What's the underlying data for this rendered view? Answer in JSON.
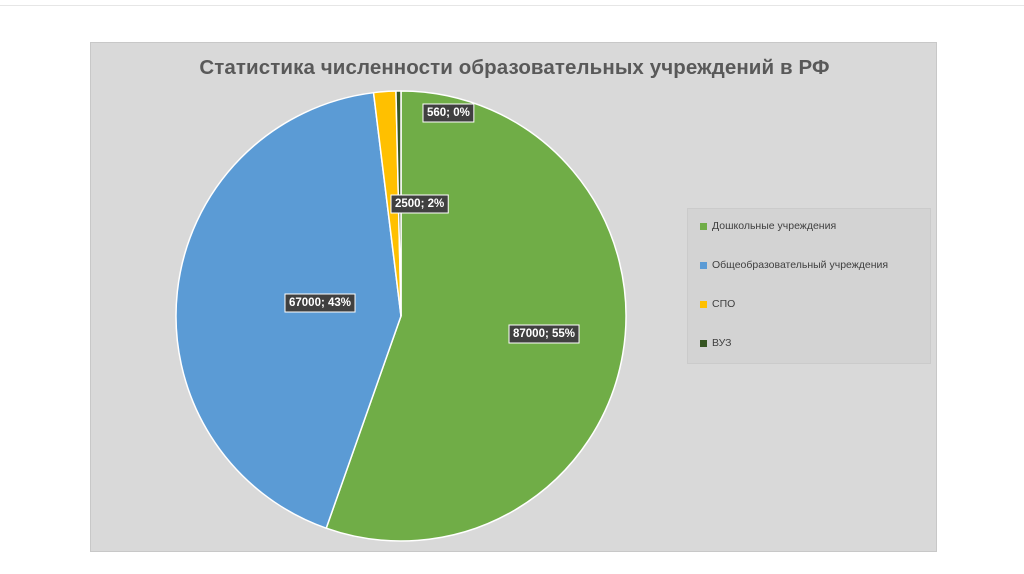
{
  "chart_data": {
    "type": "pie",
    "title": "Статистика численности образовательных учреждений в РФ",
    "slices": [
      {
        "name": "Дошкольные учреждения",
        "value": 87000,
        "label": "87000; 55%",
        "color": "#70ad47"
      },
      {
        "name": "Общеобразовательный учреждения",
        "value": 67000,
        "label": "67000; 43%",
        "color": "#5b9bd5"
      },
      {
        "name": "СПО",
        "value": 2500,
        "label": "2500; 2%",
        "color": "#ffc000"
      },
      {
        "name": "ВУЗ",
        "value": 560,
        "label": "560; 0%",
        "color": "#375623"
      }
    ],
    "legend_position": "right"
  }
}
